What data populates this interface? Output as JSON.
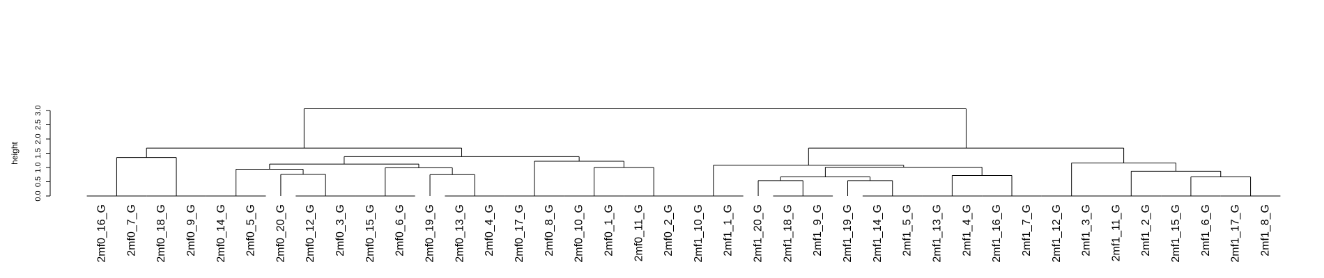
{
  "chart_data": {
    "type": "dendrogram",
    "title": "",
    "xlabel": "",
    "ylabel": "height",
    "ylim": [
      0,
      3.2
    ],
    "yticks": [
      "0.0",
      "0.5",
      "1.0",
      "1.5",
      "2.0",
      "2.5",
      "3.0"
    ],
    "line_color": "#000000",
    "leaves": [
      "2mf0_16_G",
      "2mf0_7_G",
      "2mf0_18_G",
      "2mf0_9_G",
      "2mf0_14_G",
      "2mf0_5_G",
      "2mf0_20_G",
      "2mf0_12_G",
      "2mf0_3_G",
      "2mf0_15_G",
      "2mf0_6_G",
      "2mf0_19_G",
      "2mf0_13_G",
      "2mf0_4_G",
      "2mf0_17_G",
      "2mf0_8_G",
      "2mf0_10_G",
      "2mf0_1_G",
      "2mf0_11_G",
      "2mf0_2_G",
      "2mf1_10_G",
      "2mf1_1_G",
      "2mf1_20_G",
      "2mf1_18_G",
      "2mf1_9_G",
      "2mf1_19_G",
      "2mf1_14_G",
      "2mf1_5_G",
      "2mf1_13_G",
      "2mf1_4_G",
      "2mf1_16_G",
      "2mf1_7_G",
      "2mf1_12_G",
      "2mf1_3_G",
      "2mf1_11_G",
      "2mf1_2_G",
      "2mf1_15_G",
      "2mf1_6_G",
      "2mf1_17_G",
      "2mf1_8_G"
    ],
    "merges": [
      {
        "left": "L1",
        "right": "L2",
        "height": 0.0
      },
      {
        "left": "L3",
        "right": "L4",
        "height": 0.0
      },
      {
        "left": "L5",
        "right": "L6",
        "height": 0.0
      },
      {
        "left": "L8",
        "right": "L9",
        "height": 0.0
      },
      {
        "left": "L10",
        "right": "L11",
        "height": 0.0
      },
      {
        "left": "L13",
        "right": "L14",
        "height": 0.0
      },
      {
        "left": "L15",
        "right": "L16",
        "height": 0.0
      },
      {
        "left": "L17",
        "right": "L18",
        "height": 0.0
      },
      {
        "left": "L19",
        "right": "L20",
        "height": 0.0
      },
      {
        "left": "L21",
        "right": "L22",
        "height": 0.0
      },
      {
        "left": "L24",
        "right": "L25",
        "height": 0.0
      },
      {
        "left": "L27",
        "right": "L28",
        "height": 0.0
      },
      {
        "left": "L29",
        "right": "L30",
        "height": 0.0
      },
      {
        "left": "L31",
        "right": "L32",
        "height": 0.0
      },
      {
        "left": "L33",
        "right": "L34",
        "height": 0.0
      },
      {
        "left": "L35",
        "right": "L36",
        "height": 0.0
      },
      {
        "left": "L37",
        "right": "L38",
        "height": 0.0
      },
      {
        "left": "L39",
        "right": "L40",
        "height": 0.0
      },
      {
        "left": "M1",
        "right": "M2",
        "height": 1.35
      },
      {
        "left": "L7",
        "right": "M4",
        "height": 0.76
      },
      {
        "left": "M3",
        "right": "M20",
        "height": 0.94
      },
      {
        "left": "L12",
        "right": "M6",
        "height": 0.75
      },
      {
        "left": "M5",
        "right": "M22",
        "height": 0.99
      },
      {
        "left": "M21",
        "right": "M23",
        "height": 1.12
      },
      {
        "left": "M8",
        "right": "M9",
        "height": 1.0
      },
      {
        "left": "M7",
        "right": "M25",
        "height": 1.22
      },
      {
        "left": "M24",
        "right": "M26",
        "height": 1.38
      },
      {
        "left": "M19",
        "right": "M27",
        "height": 1.68
      },
      {
        "left": "L23",
        "right": "M11",
        "height": 0.54
      },
      {
        "left": "L26",
        "right": "M12",
        "height": 0.54
      },
      {
        "left": "M29",
        "right": "M30",
        "height": 0.67
      },
      {
        "left": "M13",
        "right": "M14",
        "height": 0.72
      },
      {
        "left": "M31",
        "right": "M32",
        "height": 1.01
      },
      {
        "left": "M10",
        "right": "M33",
        "height": 1.08
      },
      {
        "left": "M18",
        "right": "M17",
        "height": 0.67
      },
      {
        "left": "M16",
        "right": "M35",
        "height": 0.87
      },
      {
        "left": "M15",
        "right": "M36",
        "height": 1.16
      },
      {
        "left": "M34",
        "right": "M37",
        "height": 1.68
      },
      {
        "left": "M28",
        "right": "M38",
        "height": 3.06
      }
    ]
  }
}
